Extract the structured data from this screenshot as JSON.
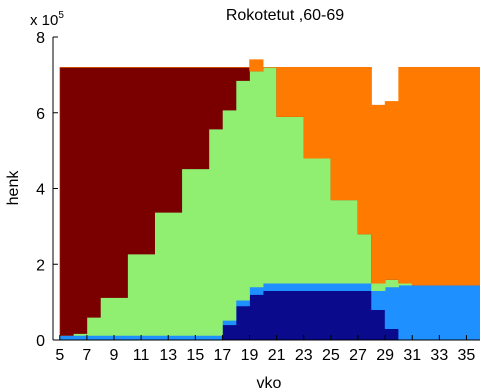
{
  "chart_data": {
    "type": "area",
    "title": "Rokotetut ,60-69",
    "xlabel": "vko",
    "ylabel": "henk",
    "y_multiplier_label": "x 10",
    "y_multiplier_exponent": "5",
    "xlim": [
      4.5,
      36
    ],
    "ylim": [
      0,
      8
    ],
    "x_ticks": [
      5,
      7,
      9,
      11,
      13,
      15,
      17,
      19,
      21,
      23,
      25,
      27,
      29,
      31,
      33,
      35
    ],
    "y_ticks": [
      0,
      2,
      4,
      6,
      8
    ],
    "grid": false,
    "legend": "none",
    "stack_order_bottom_to_top": [
      "series_a",
      "series_b",
      "series_c",
      "series_d",
      "series_e"
    ],
    "x": [
      4,
      5,
      6,
      7,
      8,
      9,
      10,
      11,
      12,
      13,
      14,
      15,
      16,
      17,
      18,
      19,
      20,
      21,
      22,
      23,
      24,
      25,
      26,
      27,
      28,
      29,
      30,
      31,
      32,
      33,
      34,
      35,
      36
    ],
    "series": [
      {
        "key": "series_a",
        "color": "#0a0a8c",
        "values": [
          0,
          0.02,
          0,
          0,
          0,
          0,
          0,
          0,
          0,
          0,
          0,
          0,
          0,
          0.4,
          0.9,
          1.2,
          1.3,
          1.3,
          1.3,
          1.3,
          1.3,
          1.3,
          1.3,
          1.3,
          0.8,
          0.3,
          0,
          0,
          0,
          0,
          0,
          0,
          0
        ]
      },
      {
        "key": "series_b",
        "color": "#1e90ff",
        "values": [
          0,
          0.1,
          0.12,
          0.12,
          0.12,
          0.12,
          0.12,
          0.12,
          0.12,
          0.12,
          0.12,
          0.12,
          0.12,
          0.12,
          0.15,
          0.2,
          0.2,
          0.2,
          0.2,
          0.2,
          0.2,
          0.2,
          0.2,
          0.2,
          0.5,
          1.1,
          1.45,
          1.45,
          1.45,
          1.45,
          1.45,
          1.45,
          1.45
        ]
      },
      {
        "key": "series_c",
        "color": "#90ee70",
        "values": [
          0,
          0,
          0.05,
          0.48,
          1.0,
          1.0,
          2.15,
          2.15,
          3.25,
          3.25,
          4.4,
          4.4,
          5.45,
          5.55,
          5.8,
          5.7,
          5.7,
          4.4,
          4.4,
          3.3,
          3.3,
          2.2,
          2.2,
          1.3,
          0.2,
          0.2,
          0.05,
          0,
          0,
          0,
          0,
          0,
          0
        ]
      },
      {
        "key": "series_d",
        "color": "#7a0000",
        "values": [
          0,
          7.08,
          7.03,
          6.6,
          6.08,
          6.08,
          4.93,
          4.93,
          3.83,
          3.83,
          2.68,
          2.68,
          1.63,
          1.13,
          0.35,
          0,
          0,
          0,
          0,
          0,
          0,
          0,
          0,
          0,
          0,
          0,
          0,
          0,
          0,
          0,
          0,
          0,
          0
        ]
      },
      {
        "key": "series_e",
        "color": "#ff7a00",
        "values": [
          0,
          0,
          0,
          0,
          0,
          0,
          0,
          0,
          0,
          0,
          0,
          0,
          0,
          0,
          0,
          0.3,
          0,
          1.3,
          1.3,
          2.4,
          2.4,
          3.5,
          3.5,
          4.4,
          4.7,
          4.7,
          5.7,
          5.75,
          5.75,
          5.75,
          5.75,
          5.75,
          5.75
        ]
      }
    ]
  }
}
